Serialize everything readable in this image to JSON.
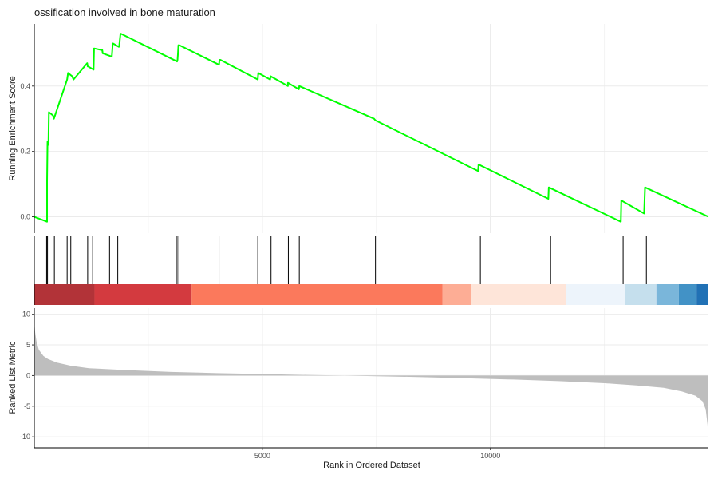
{
  "chart_data": {
    "type": "line",
    "title": "ossification involved in bone maturation",
    "xlabel": "Rank in Ordered Dataset",
    "grid": true,
    "xlim": [
      0,
      14780
    ],
    "x_ticks": [
      5000,
      10000
    ],
    "panels": {
      "running_score": {
        "ylabel": "Running Enrichment Score",
        "ylim": [
          -0.05,
          0.59
        ],
        "y_ticks": [
          0.0,
          0.2,
          0.4
        ],
        "y_tick_labels": [
          "0.0",
          "0.2",
          "0.4"
        ],
        "line_color": "#00FF00",
        "series": [
          {
            "x": [
              0,
              280,
              280,
              290,
              300,
              300,
              310,
              320,
              410,
              430,
              720,
              730,
              740,
              830,
              860,
              1160,
              1170,
              1180,
              1300,
              1310,
              1480,
              1490,
              1500,
              1700,
              1720,
              1730,
              1850,
              1860,
              1890,
              1900,
              3130,
              3140,
              3150,
              3160,
              3180,
              4050,
              4060,
              4080,
              4900,
              4910,
              5170,
              5180,
              5180,
              5560,
              5560,
              5800,
              5810,
              7450,
              7480,
              9730,
              9740,
              11270,
              11280,
              12860,
              12870,
              13370,
              13390,
              14780
            ],
            "y": [
              0.0,
              -0.015,
              0.11,
              0.23,
              0.23,
              0.22,
              0.22,
              0.32,
              0.31,
              0.3,
              0.42,
              0.43,
              0.44,
              0.43,
              0.42,
              0.47,
              0.46,
              0.46,
              0.45,
              0.515,
              0.51,
              0.51,
              0.5,
              0.49,
              0.53,
              0.53,
              0.52,
              0.52,
              0.56,
              0.56,
              0.475,
              0.48,
              0.5,
              0.525,
              0.525,
              0.465,
              0.48,
              0.48,
              0.42,
              0.44,
              0.42,
              0.43,
              0.43,
              0.4,
              0.41,
              0.39,
              0.4,
              0.3,
              0.295,
              0.14,
              0.16,
              0.055,
              0.09,
              -0.015,
              0.05,
              0.01,
              0.09,
              0.0
            ]
          }
        ]
      },
      "hits": {
        "positions": [
          270,
          290,
          440,
          720,
          800,
          1170,
          1280,
          1650,
          1830,
          3130,
          3170,
          4050,
          4900,
          5190,
          5570,
          5810,
          7480,
          9780,
          11320,
          12910,
          13420
        ]
      },
      "heatmap": {
        "colors": [
          "#A50F15",
          "#CB181D",
          "#EF3B2C",
          "#FB6A4A",
          "#FC9272",
          "#FCBBA1",
          "#FEE0D2",
          "#FFFFFF",
          "#DEEBF7",
          "#C6DBEF",
          "#9ECAE1",
          "#6BAED6",
          "#4292C6",
          "#2171B5"
        ],
        "blocks": [
          {
            "start": 0,
            "end": 1320,
            "color": "#A50F15",
            "opacity": 0.85
          },
          {
            "start": 1320,
            "end": 3450,
            "color": "#CB181D",
            "opacity": 0.85
          },
          {
            "start": 3450,
            "end": 8950,
            "color": "#FB6A4A",
            "opacity": 0.9
          },
          {
            "start": 8950,
            "end": 9580,
            "color": "#FC9272",
            "opacity": 0.75
          },
          {
            "start": 9580,
            "end": 11660,
            "color": "#FEE0D2",
            "opacity": 0.85
          },
          {
            "start": 11660,
            "end": 12960,
            "color": "#DEEBF7",
            "opacity": 0.55
          },
          {
            "start": 12960,
            "end": 13640,
            "color": "#9ECAE1",
            "opacity": 0.6
          },
          {
            "start": 13640,
            "end": 14130,
            "color": "#6BAED6",
            "opacity": 0.9
          },
          {
            "start": 14130,
            "end": 14520,
            "color": "#4292C6",
            "opacity": 1
          },
          {
            "start": 14520,
            "end": 14780,
            "color": "#2171B5",
            "opacity": 1
          }
        ]
      },
      "ranked_metric": {
        "ylabel": "Ranked List Metric",
        "ylim": [
          -11.8,
          11
        ],
        "y_ticks": [
          10,
          5,
          0,
          -5,
          -10
        ],
        "y_tick_labels": [
          "10",
          "5",
          "0",
          "-5",
          "-10"
        ],
        "fill_color": "#BEBEBE",
        "series": [
          {
            "x": [
              0,
              20,
              50,
              100,
              200,
              300,
              500,
              800,
              1200,
              2000,
              3000,
              4000,
              5000,
              6000,
              6800,
              7500,
              8500,
              9500,
              10500,
              11500,
              12500,
              13200,
              13800,
              14200,
              14500,
              14650,
              14720,
              14760,
              14780
            ],
            "y": [
              8.8,
              7.0,
              5.5,
              4.2,
              3.2,
              2.7,
              2.1,
              1.6,
              1.2,
              0.9,
              0.6,
              0.4,
              0.25,
              0.1,
              0.0,
              -0.1,
              -0.25,
              -0.45,
              -0.65,
              -0.9,
              -1.25,
              -1.6,
              -2.0,
              -2.6,
              -3.3,
              -4.2,
              -5.5,
              -8.0,
              -10.8
            ]
          }
        ]
      }
    }
  }
}
